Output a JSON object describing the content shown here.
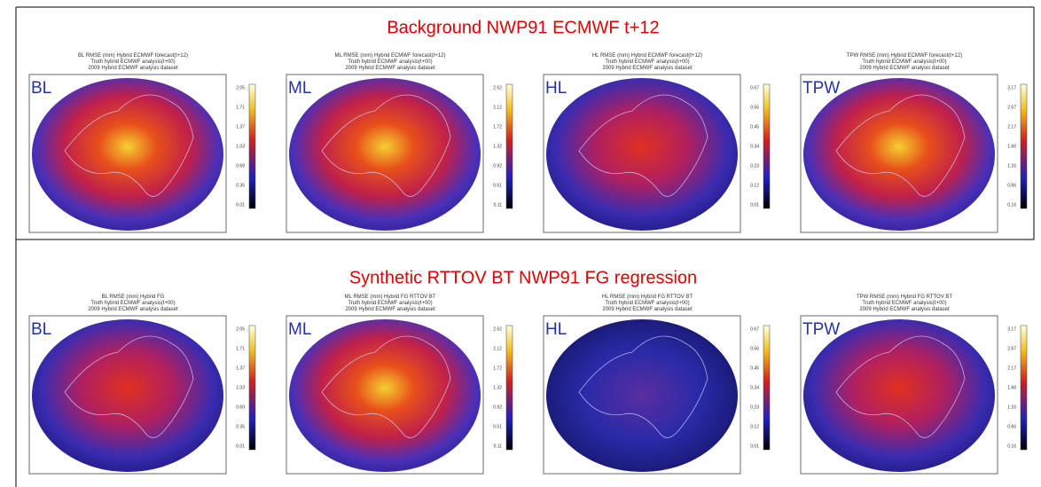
{
  "rows": [
    {
      "title": "Background NWP91 ECMWF t+12",
      "panels": [
        {
          "label": "BL",
          "title_lines": [
            "BL RMSE (mm) Hybrid ECMWF forecast(t+12)",
            "Truth hybrid ECMWF analysis(t+00)",
            "2009 Hybrid ECMWF analysis dataset"
          ],
          "colorbar_ticks": [
            "2.05",
            "1.71",
            "1.37",
            "1.03",
            "0.69",
            "0.35",
            "0.01"
          ]
        },
        {
          "label": "ML",
          "title_lines": [
            "ML RMSE (mm) Hybrid ECMWF forecast(t+12)",
            "Truth hybrid ECMWF analysis(t+00)",
            "2009 Hybrid ECMWF analysis dataset"
          ],
          "colorbar_ticks": [
            "2.52",
            "2.12",
            "1.72",
            "1.32",
            "0.92",
            "0.51",
            "0.11"
          ]
        },
        {
          "label": "HL",
          "title_lines": [
            "HL RMSE (mm) Hybrid ECMWF forecast(t+12)",
            "Truth hybrid ECMWF analysis(t+00)",
            "2009 Hybrid ECMWF analysis dataset"
          ],
          "colorbar_ticks": [
            "0.67",
            "0.56",
            "0.45",
            "0.34",
            "0.23",
            "0.12",
            "0.01"
          ]
        },
        {
          "label": "TPW",
          "title_lines": [
            "TPW RMSE (mm) Hybrid ECMWF forecast(t+12)",
            "Truth hybrid ECMWF analysis(t+00)",
            "2009 Hybrid ECMWF analysis dataset"
          ],
          "colorbar_ticks": [
            "3.17",
            "2.67",
            "2.17",
            "1.66",
            "1.16",
            "0.66",
            "0.16"
          ]
        }
      ]
    },
    {
      "title": "Synthetic RTTOV BT NWP91 FG regression",
      "panels": [
        {
          "label": "BL",
          "title_lines": [
            "BL RMSE (mm) Hybrid FG",
            "Truth hybrid ECMWF analysis(t+00)",
            "2009 Hybrid ECMWF analysis dataset"
          ],
          "colorbar_ticks": [
            "2.05",
            "1.71",
            "1.37",
            "1.03",
            "0.69",
            "0.35",
            "0.01"
          ]
        },
        {
          "label": "ML",
          "title_lines": [
            "ML RMSE (mm) Hybrid FG RTTOV BT",
            "Truth hybrid ECMWF analysis(t+00)",
            "2009 Hybrid ECMWF analysis dataset"
          ],
          "colorbar_ticks": [
            "2.52",
            "2.12",
            "1.72",
            "1.32",
            "0.92",
            "0.51",
            "0.11"
          ]
        },
        {
          "label": "HL",
          "title_lines": [
            "HL RMSE (mm) Hybrid FG RTTOV BT",
            "Truth hybrid ECMWF analysis(t+00)",
            "2009 Hybrid ECMWF analysis dataset"
          ],
          "colorbar_ticks": [
            "0.67",
            "0.56",
            "0.45",
            "0.34",
            "0.23",
            "0.12",
            "0.01"
          ]
        },
        {
          "label": "TPW",
          "title_lines": [
            "TPW RMSE (mm) Hybrid FG RTTOV BT",
            "Truth hybrid ECMWF analysis(t+00)",
            "2009 Hybrid ECMWF analysis dataset"
          ],
          "colorbar_ticks": [
            "3.17",
            "2.67",
            "2.17",
            "1.66",
            "1.16",
            "0.66",
            "0.16"
          ]
        }
      ]
    }
  ]
}
